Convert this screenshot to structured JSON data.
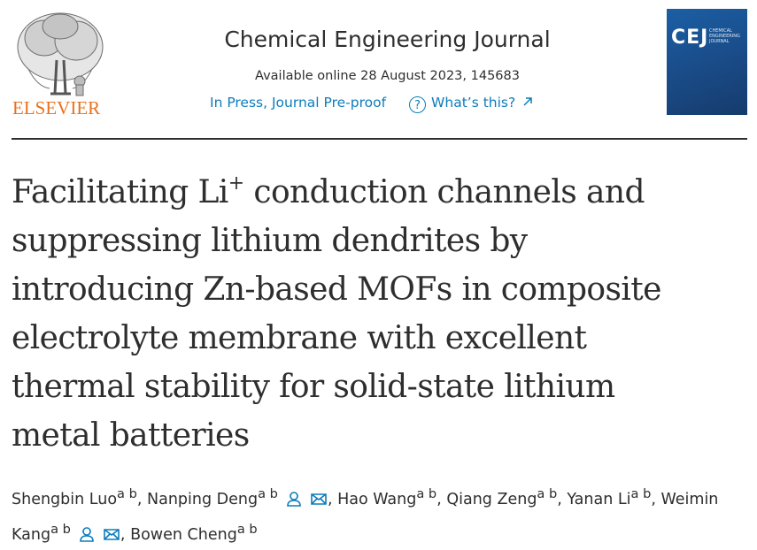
{
  "header": {
    "publisher": "ELSEVIER",
    "journal": "Chemical Engineering Journal",
    "availability": "Available online 28 August 2023, 145683",
    "status": "In Press, Journal Pre-proof",
    "help_icon": "?",
    "help_link": "What’s this?",
    "cover": {
      "title": "CEJ",
      "subtitle": "CHEMICAL ENGINEERING JOURNAL"
    }
  },
  "article": {
    "title": {
      "first_line": [
        "Facilitating Li",
        "+",
        " conduction channels and"
      ],
      "lines": [
        "suppressing lithium dendrites by",
        "introducing Zn-based MOFs in composite",
        "electrolyte membrane with excellent",
        "thermal stability for solid-state lithium",
        "metal batteries"
      ]
    },
    "separator": ",",
    "authors": [
      {
        "name": "Shengbin Luo",
        "affiliations": "a b",
        "icons": false
      },
      {
        "name": "Nanping Deng",
        "affiliations": "a b",
        "icons": true
      },
      {
        "name": "Hao Wang",
        "affiliations": "a b",
        "icons": false
      },
      {
        "name": "Qiang Zeng",
        "affiliations": "a b",
        "icons": false
      },
      {
        "name": "Yanan Li",
        "affiliations": "a b",
        "icons": false
      },
      {
        "name": "Weimin Kang",
        "affiliations": "a b",
        "icons": true
      },
      {
        "name": "Bowen Cheng",
        "affiliations": "a b",
        "icons": false
      }
    ]
  }
}
